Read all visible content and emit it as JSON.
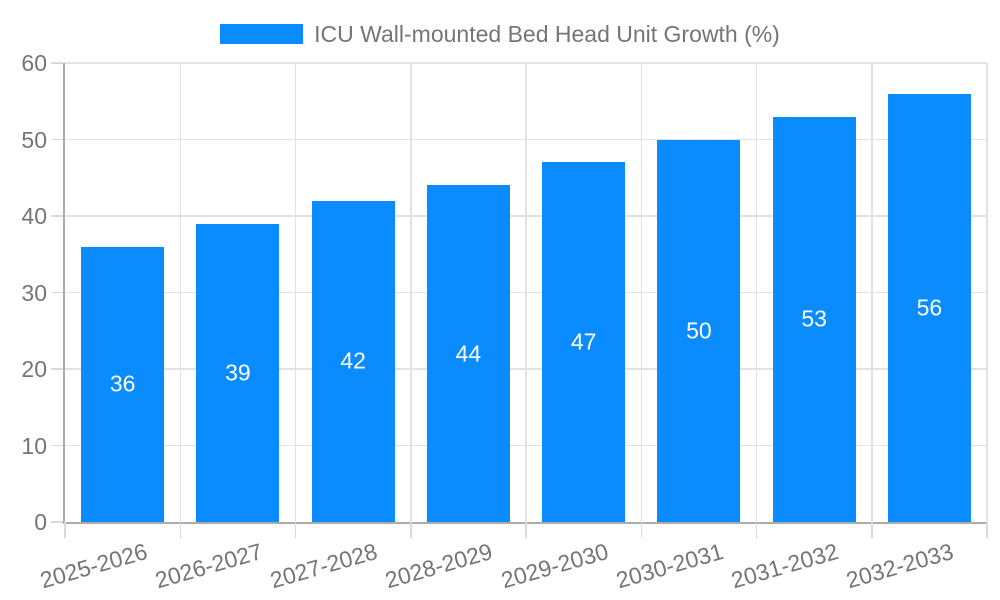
{
  "chart_data": {
    "type": "bar",
    "title": "ICU Wall-mounted Bed Head Unit Growth (%)",
    "categories": [
      "2025-2026",
      "2026-2027",
      "2027-2028",
      "2028-2029",
      "2029-2030",
      "2030-2031",
      "2031-2032",
      "2032-2033"
    ],
    "values": [
      36,
      39,
      42,
      44,
      47,
      50,
      53,
      56
    ],
    "xlabel": "",
    "ylabel": "",
    "ylim": [
      0,
      60
    ],
    "yticks": [
      0,
      10,
      20,
      30,
      40,
      50,
      60
    ],
    "grid": true,
    "bar_value_labels_shown": true,
    "legend_position": "top-center"
  },
  "colors": {
    "bar": "#0a8cff",
    "bar_label": "#ffffff",
    "axis_text": "#757575",
    "gridline": "#e2e2e2",
    "axis_line": "#ababab",
    "tick": "#d9d9d9",
    "background": "#ffffff"
  }
}
